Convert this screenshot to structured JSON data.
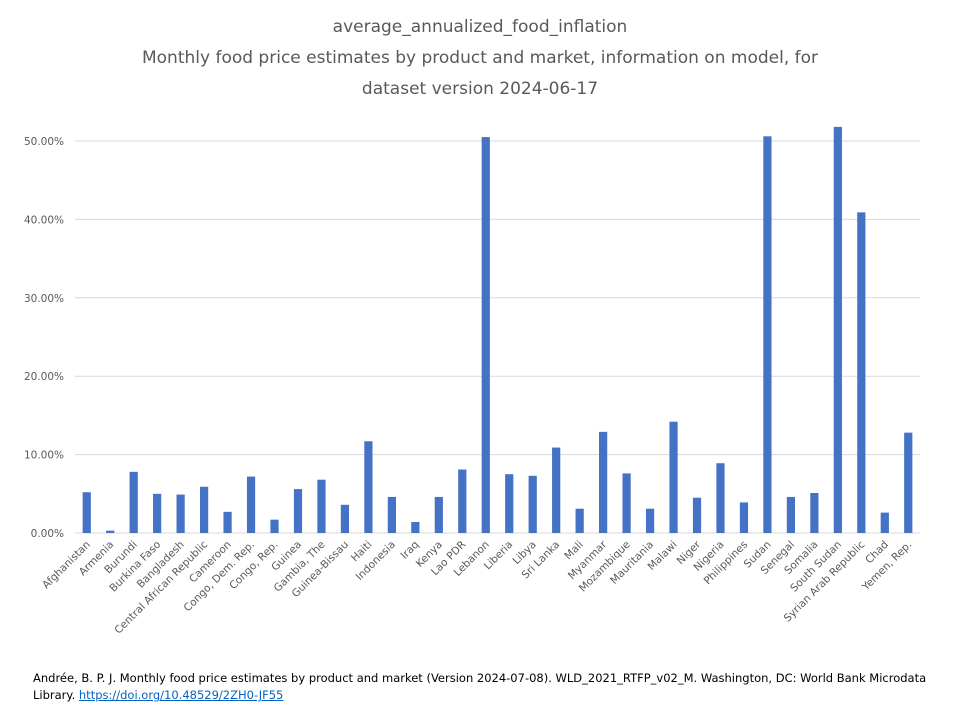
{
  "chart_data": {
    "type": "bar",
    "title_lines": [
      "average_annualized_food_inflation",
      "Monthly food price estimates by product and market, information on model, for",
      "dataset version 2024-06-17"
    ],
    "xlabel": "",
    "ylabel": "",
    "ylim": [
      0,
      0.5
    ],
    "yticks": [
      {
        "value": 0.0,
        "label": "0.00%"
      },
      {
        "value": 0.1,
        "label": "10.00%"
      },
      {
        "value": 0.2,
        "label": "20.00%"
      },
      {
        "value": 0.3,
        "label": "30.00%"
      },
      {
        "value": 0.4,
        "label": "40.00%"
      },
      {
        "value": 0.5,
        "label": "50.00%"
      }
    ],
    "grid": true,
    "legend": "none",
    "bar_color": "#4472c4",
    "categories": [
      "Afghanistan",
      "Armenia",
      "Burundi",
      "Burkina Faso",
      "Bangladesh",
      "Central African Republic",
      "Cameroon",
      "Congo, Dem. Rep.",
      "Congo, Rep.",
      "Guinea",
      "Gambia, The",
      "Guinea-Bissau",
      "Haiti",
      "Indonesia",
      "Iraq",
      "Kenya",
      "Lao PDR",
      "Lebanon",
      "Liberia",
      "Libya",
      "Sri Lanka",
      "Mali",
      "Myanmar",
      "Mozambique",
      "Mauritania",
      "Malawi",
      "Niger",
      "Nigeria",
      "Philippines",
      "Sudan",
      "Senegal",
      "Somalia",
      "South Sudan",
      "Syrian Arab Republic",
      "Chad",
      "Yemen, Rep."
    ],
    "values": [
      0.052,
      0.003,
      0.078,
      0.05,
      0.049,
      0.059,
      0.027,
      0.072,
      0.017,
      0.056,
      0.068,
      0.036,
      0.117,
      0.046,
      0.014,
      0.046,
      0.081,
      0.505,
      0.075,
      0.073,
      0.109,
      0.031,
      0.129,
      0.076,
      0.031,
      0.142,
      0.045,
      0.089,
      0.039,
      0.506,
      0.046,
      0.051,
      0.518,
      0.409,
      0.026,
      0.128
    ]
  },
  "source": {
    "citation": "Andrée, B. P. J. Monthly food price estimates by product and market (Version 2024-07-08).  WLD_2021_RTFP_v02_M. Washington, DC: World Bank Microdata Library. ",
    "link_text": "https://doi.org/10.48529/2ZH0-JF55"
  }
}
